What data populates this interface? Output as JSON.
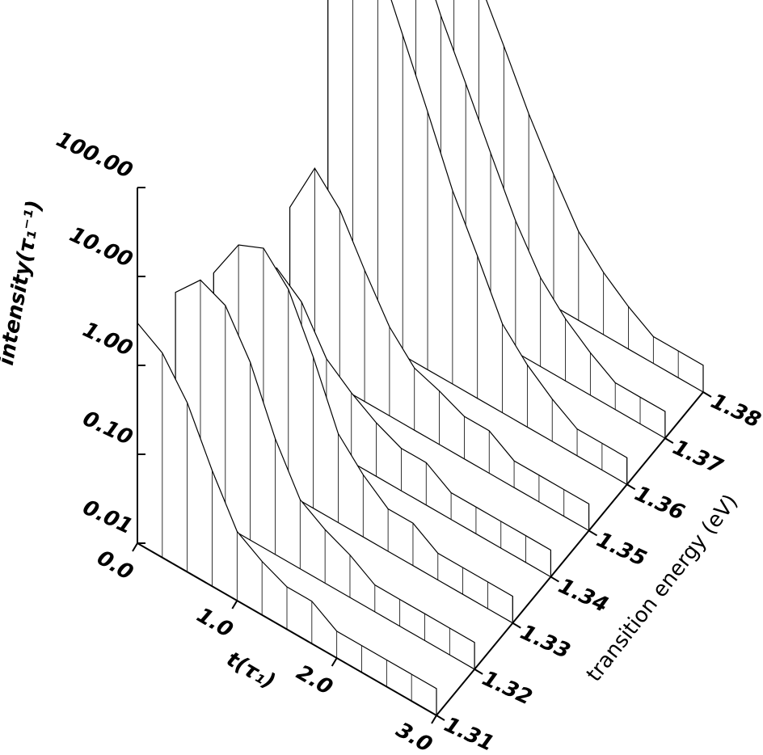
{
  "chart_data": {
    "type": "waterfall",
    "xlabel": "t(τ₁)",
    "ylabel": "transition energy (eV)",
    "zlabel": "intensity(τ₁⁻¹)",
    "x": [
      0,
      0.25,
      0.5,
      0.75,
      1,
      1.25,
      1.5,
      1.75,
      2,
      2.25,
      2.5,
      2.75,
      3
    ],
    "series": [
      {
        "energy": 1.38,
        "values": [
          200,
          150,
          60,
          15,
          4,
          1,
          0.3,
          0.1,
          0.05,
          0.03,
          0.02,
          0.02,
          0.02
        ]
      },
      {
        "energy": 1.37,
        "values": [
          300,
          250,
          100,
          20,
          5,
          1.2,
          0.3,
          0.1,
          0.05,
          0.03,
          0.02,
          0.02,
          0.02
        ]
      },
      {
        "energy": 1.36,
        "values": [
          150,
          400,
          200,
          40,
          8,
          1.5,
          0.4,
          0.1,
          0.05,
          0.03,
          0.02,
          0.02,
          0.02
        ]
      },
      {
        "energy": 1.35,
        "values": [
          0.5,
          2,
          1,
          0.3,
          0.1,
          0.05,
          0.04,
          0.03,
          0.03,
          0.02,
          0.02,
          0.02,
          0.02
        ]
      },
      {
        "energy": 1.34,
        "values": [
          0.3,
          0.5,
          0.3,
          0.1,
          0.06,
          0.04,
          0.03,
          0.03,
          0.02,
          0.02,
          0.02,
          0.02,
          0.02
        ]
      },
      {
        "energy": 1.33,
        "values": [
          1,
          3,
          4,
          2,
          0.5,
          0.1,
          0.05,
          0.03,
          0.03,
          0.02,
          0.02,
          0.02,
          0.02
        ]
      },
      {
        "energy": 1.32,
        "values": [
          2,
          4,
          3,
          1,
          0.2,
          0.06,
          0.04,
          0.03,
          0.02,
          0.02,
          0.02,
          0.02,
          0.02
        ]
      },
      {
        "energy": 1.31,
        "values": [
          3,
          2,
          0.8,
          0.2,
          0.06,
          0.04,
          0.03,
          0.03,
          0.02,
          0.02,
          0.02,
          0.02,
          0.02
        ]
      }
    ],
    "xlim": [
      0,
      3
    ],
    "xticks": [
      {
        "value": 0,
        "label": "0.0"
      },
      {
        "value": 1,
        "label": "1.0"
      },
      {
        "value": 2,
        "label": "2.0"
      },
      {
        "value": 3,
        "label": "3.0"
      }
    ],
    "ylim": [
      1.31,
      1.38
    ],
    "yticks": [
      1.31,
      1.32,
      1.33,
      1.34,
      1.35,
      1.36,
      1.37,
      1.38
    ],
    "zlim": [
      0.01,
      100
    ],
    "zscale": "log",
    "zticks": [
      {
        "value": 0.01,
        "label": "0.01"
      },
      {
        "value": 0.1,
        "label": "0.10"
      },
      {
        "value": 1,
        "label": "1.00"
      },
      {
        "value": 10,
        "label": "10.00"
      },
      {
        "value": 100,
        "label": "100.00"
      }
    ]
  }
}
